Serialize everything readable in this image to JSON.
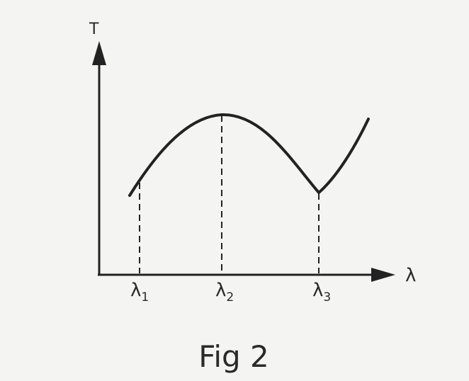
{
  "figure": {
    "caption": "Fig 2",
    "y_axis_label": "T",
    "x_axis_label": "λ",
    "markers": [
      {
        "symbol": "λ",
        "subscript": "1"
      },
      {
        "symbol": "λ",
        "subscript": "2"
      },
      {
        "symbol": "λ",
        "subscript": "3"
      }
    ]
  }
}
